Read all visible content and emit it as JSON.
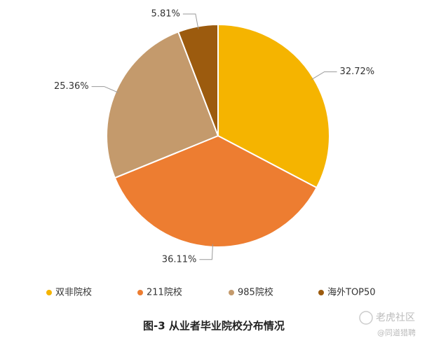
{
  "chart_data": {
    "type": "pie",
    "title": "图-3 从业者毕业院校分布情况",
    "categories": [
      "双非院校",
      "211院校",
      "985院校",
      "海外TOP50"
    ],
    "values": [
      32.72,
      36.11,
      25.36,
      5.81
    ],
    "value_labels": [
      "32.72%",
      "36.11%",
      "25.36%",
      "5.81%"
    ],
    "colors": [
      "#f5b400",
      "#ed7d31",
      "#c49a6c",
      "#9c5b0e"
    ],
    "legend": "bottom",
    "watermark": {
      "brand": "老虎社区",
      "credit": "@同道猎聘"
    }
  }
}
